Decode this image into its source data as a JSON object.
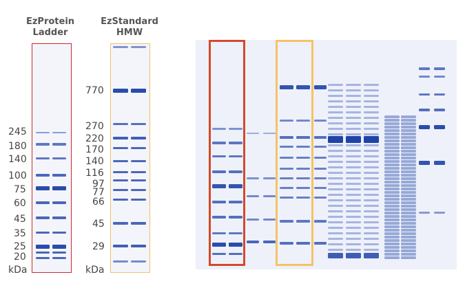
{
  "titles": {
    "ezprotein": [
      "EzProtein",
      "Ladder"
    ],
    "ezstandard": [
      "EzStandard",
      "HMW"
    ]
  },
  "ladder_labels": [
    "245",
    "180",
    "140",
    "100",
    "75",
    "60",
    "45",
    "35",
    "25",
    "20",
    "kDa"
  ],
  "hmw_labels": [
    "770",
    "270",
    "220",
    "170",
    "140",
    "116",
    "97",
    "77",
    "66",
    "45",
    "29",
    "kDa"
  ],
  "colors": {
    "gel_background": "#f3f5fb",
    "band": "#1f43a8",
    "ladder_frame": "#c8292e",
    "hmw_frame": "#f2c169",
    "gel3_ladder_frame": "#d24a2a",
    "gel3_hmw_frame": "#f5c266"
  }
}
